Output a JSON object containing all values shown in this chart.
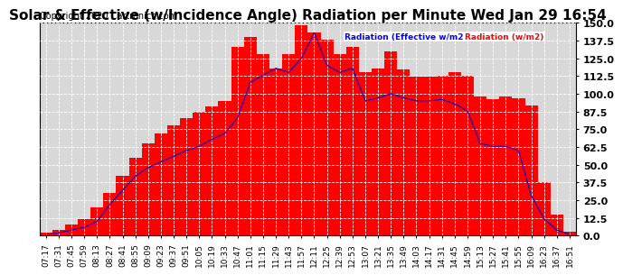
{
  "title": "Solar & Effective (w/Incidence Angle) Radiation per Minute Wed Jan 29 16:54",
  "copyright": "Copyright 2020 Cartronics.com",
  "legend_label1": "Radiation (Effective w/m2)",
  "legend_label2": "Radiation (w/m2)",
  "legend_color1": "#0000ff",
  "legend_color2": "#ff0000",
  "legend_bg": "#0000cc",
  "ylim": [
    0,
    150
  ],
  "yticks": [
    0.0,
    12.5,
    25.0,
    37.5,
    50.0,
    62.5,
    75.0,
    87.5,
    100.0,
    112.5,
    125.0,
    137.5,
    150.0
  ],
  "bg_color": "#ffffff",
  "plot_bg_color": "#d8d8d8",
  "grid_color": "#ffffff",
  "bar_color": "#ff0000",
  "line_color": "#0000cc",
  "title_fontsize": 11,
  "copyright_fontsize": 7,
  "tick_fontsize": 6.5,
  "ytick_fontsize": 8,
  "x_labels": [
    "07:17",
    "07:31",
    "07:45",
    "07:59",
    "08:13",
    "08:27",
    "08:41",
    "08:55",
    "09:09",
    "09:23",
    "09:37",
    "09:51",
    "10:05",
    "10:19",
    "10:33",
    "10:47",
    "11:01",
    "11:15",
    "11:29",
    "11:43",
    "11:57",
    "12:11",
    "12:25",
    "12:39",
    "12:53",
    "13:07",
    "13:21",
    "13:35",
    "13:49",
    "14:03",
    "14:17",
    "14:31",
    "14:45",
    "14:59",
    "15:13",
    "15:27",
    "15:41",
    "15:55",
    "16:09",
    "16:23",
    "16:37",
    "16:51"
  ],
  "solar_radiation": [
    2,
    4,
    8,
    12,
    20,
    30,
    42,
    55,
    65,
    72,
    78,
    83,
    87,
    91,
    95,
    133,
    140,
    128,
    118,
    128,
    148,
    143,
    138,
    128,
    133,
    115,
    118,
    130,
    117,
    112,
    112,
    113,
    115,
    113,
    98,
    96,
    98,
    97,
    92,
    38,
    15,
    3
  ],
  "effective_radiation": [
    1,
    2,
    4,
    6,
    10,
    22,
    32,
    42,
    48,
    52,
    56,
    60,
    63,
    68,
    72,
    83,
    108,
    113,
    118,
    115,
    125,
    143,
    120,
    115,
    118,
    95,
    97,
    100,
    97,
    95,
    95,
    96,
    93,
    88,
    65,
    63,
    63,
    60,
    28,
    12,
    4,
    1
  ]
}
